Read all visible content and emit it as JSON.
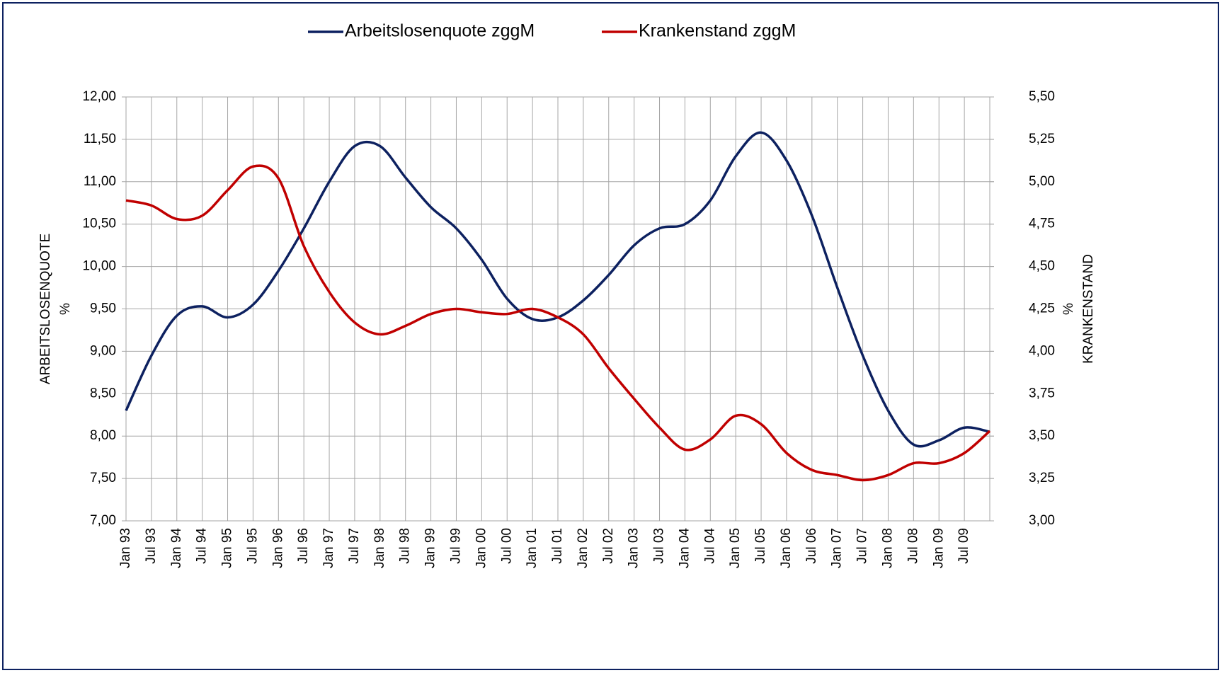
{
  "chart_data": {
    "type": "line",
    "categories": [
      "Jan 93",
      "Jul 93",
      "Jan 94",
      "Jul 94",
      "Jan 95",
      "Jul 95",
      "Jan 96",
      "Jul 96",
      "Jan 97",
      "Jul 97",
      "Jan 98",
      "Jul 98",
      "Jan 99",
      "Jul 99",
      "Jan 00",
      "Jul 00",
      "Jan 01",
      "Jul 01",
      "Jan 02",
      "Jul 02",
      "Jan 03",
      "Jul 03",
      "Jan 04",
      "Jul 04",
      "Jan 05",
      "Jul 05",
      "Jan 06",
      "Jul 06",
      "Jan 07",
      "Jul 07",
      "Jan 08",
      "Jul 08",
      "Jan 09",
      "Jul 09",
      null
    ],
    "series": [
      {
        "name": "Arbeitslosenquote zggM",
        "color": "#0d2160",
        "values": [
          8.3,
          8.95,
          9.42,
          9.53,
          9.4,
          9.55,
          9.95,
          10.45,
          11.0,
          11.42,
          11.42,
          11.05,
          10.7,
          10.45,
          10.08,
          9.62,
          9.38,
          9.4,
          9.6,
          9.9,
          10.25,
          10.45,
          10.5,
          10.78,
          11.3,
          11.58,
          11.25,
          10.6,
          9.75,
          8.95,
          8.3,
          7.9,
          7.95,
          8.1,
          8.05
        ]
      },
      {
        "name": "Krankenstand zggM",
        "color": "#c00000",
        "axis": "y2",
        "values": [
          4.89,
          4.86,
          4.78,
          4.8,
          4.95,
          5.09,
          5.02,
          4.62,
          4.35,
          4.17,
          4.1,
          4.15,
          4.22,
          4.25,
          4.23,
          4.22,
          4.25,
          4.2,
          4.1,
          3.9,
          3.72,
          3.55,
          3.42,
          3.48,
          3.62,
          3.57,
          3.4,
          3.3,
          3.27,
          3.24,
          3.27,
          3.34,
          3.34,
          3.4,
          3.53
        ]
      }
    ],
    "y_label": [
      "ARBEITSLOSENQUOTE",
      "%"
    ],
    "y2_label": [
      "%",
      "KRANKENSTAND"
    ],
    "ylim": [
      7,
      12
    ],
    "yticks": [
      {
        "value": 7,
        "label": "7,00"
      },
      {
        "value": 7.5,
        "label": "7,50"
      },
      {
        "value": 8,
        "label": "8,00"
      },
      {
        "value": 8.5,
        "label": "8,50"
      },
      {
        "value": 9,
        "label": "9,00"
      },
      {
        "value": 9.5,
        "label": "9,50"
      },
      {
        "value": 10,
        "label": "10,00"
      },
      {
        "value": 10.5,
        "label": "10,50"
      },
      {
        "value": 11,
        "label": "11,00"
      },
      {
        "value": 11.5,
        "label": "11,50"
      },
      {
        "value": 12,
        "label": "12,00"
      }
    ],
    "y2lim": [
      3,
      5.5
    ],
    "y2ticks": [
      {
        "value": 3,
        "label": "3,00"
      },
      {
        "value": 3.25,
        "label": "3,25"
      },
      {
        "value": 3.5,
        "label": "3,50"
      },
      {
        "value": 3.75,
        "label": "3,75"
      },
      {
        "value": 4,
        "label": "4,00"
      },
      {
        "value": 4.25,
        "label": "4,25"
      },
      {
        "value": 4.5,
        "label": "4,50"
      },
      {
        "value": 4.75,
        "label": "4,75"
      },
      {
        "value": 5,
        "label": "5,00"
      },
      {
        "value": 5.25,
        "label": "5,25"
      },
      {
        "value": 5.5,
        "label": "5,50"
      }
    ],
    "grid": true,
    "legend": "top"
  }
}
